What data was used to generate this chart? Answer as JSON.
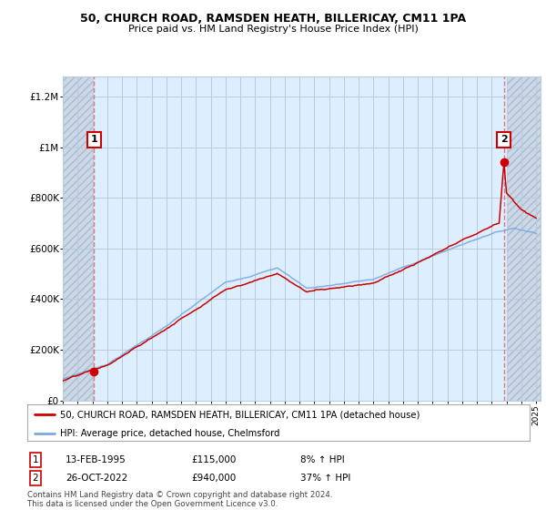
{
  "title1": "50, CHURCH ROAD, RAMSDEN HEATH, BILLERICAY, CM11 1PA",
  "title2": "Price paid vs. HM Land Registry's House Price Index (HPI)",
  "ylabel_ticks": [
    "£0",
    "£200K",
    "£400K",
    "£600K",
    "£800K",
    "£1M",
    "£1.2M"
  ],
  "ytick_values": [
    0,
    200000,
    400000,
    600000,
    800000,
    1000000,
    1200000
  ],
  "ylim": [
    0,
    1300000
  ],
  "point1_year": 1995.12,
  "point1_value": 115000,
  "point2_year": 2022.82,
  "point2_value": 940000,
  "legend_line1": "50, CHURCH ROAD, RAMSDEN HEATH, BILLERICAY, CM11 1PA (detached house)",
  "legend_line2": "HPI: Average price, detached house, Chelmsford",
  "annotation1_date": "13-FEB-1995",
  "annotation1_price": "£115,000",
  "annotation1_hpi": "8% ↑ HPI",
  "annotation2_date": "26-OCT-2022",
  "annotation2_price": "£940,000",
  "annotation2_hpi": "37% ↑ HPI",
  "footer": "Contains HM Land Registry data © Crown copyright and database right 2024.\nThis data is licensed under the Open Government Licence v3.0.",
  "red_color": "#cc0000",
  "blue_color": "#7aaadd",
  "grid_color": "#b8cce0",
  "bg_main_color": "#ddeeff",
  "bg_hatch_color": "#ccd8e8",
  "dashed_color": "#dd6666"
}
